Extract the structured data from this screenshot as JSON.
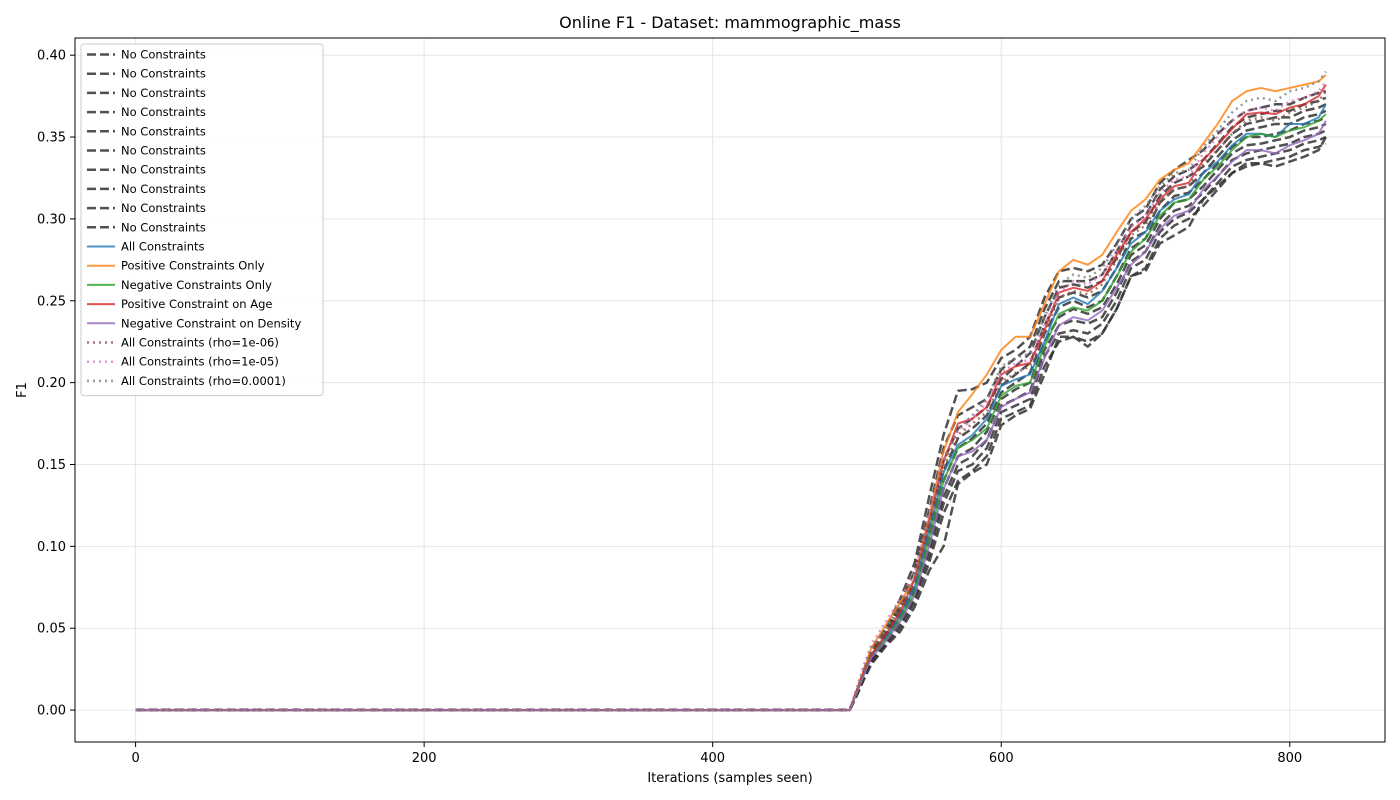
{
  "chart_data": {
    "type": "line",
    "title": "Online F1 - Dataset: mammographic_mass",
    "xlabel": "Iterations (samples seen)",
    "ylabel": "F1",
    "xlim": [
      -42,
      866
    ],
    "ylim": [
      -0.0195,
      0.4105
    ],
    "x_ticks": [
      0,
      200,
      400,
      600,
      800
    ],
    "y_ticks": [
      0.0,
      0.05,
      0.1,
      0.15,
      0.2,
      0.25,
      0.3,
      0.35,
      0.4
    ],
    "x_tick_labels": [
      "0",
      "200",
      "400",
      "600",
      "800"
    ],
    "y_tick_labels": [
      "0.00",
      "0.05",
      "0.10",
      "0.15",
      "0.20",
      "0.25",
      "0.30",
      "0.35",
      "0.40"
    ],
    "grid": true,
    "legend_position": "upper-left",
    "x": [
      0,
      495,
      500,
      505,
      510,
      520,
      530,
      540,
      550,
      560,
      570,
      580,
      590,
      600,
      610,
      620,
      630,
      640,
      650,
      660,
      670,
      680,
      690,
      700,
      710,
      720,
      730,
      740,
      750,
      760,
      770,
      780,
      790,
      800,
      810,
      820,
      825
    ],
    "series": [
      {
        "name": "No Constraints",
        "color": "#333333",
        "style": "dashed",
        "values": [
          0,
          0,
          0.012,
          0.025,
          0.037,
          0.05,
          0.068,
          0.09,
          0.13,
          0.168,
          0.195,
          0.196,
          0.2,
          0.215,
          0.22,
          0.228,
          0.252,
          0.268,
          0.27,
          0.268,
          0.272,
          0.285,
          0.3,
          0.306,
          0.322,
          0.33,
          0.336,
          0.342,
          0.352,
          0.36,
          0.366,
          0.368,
          0.37,
          0.37,
          0.374,
          0.377,
          0.378
        ]
      },
      {
        "name": "No Constraints",
        "color": "#333333",
        "style": "dashed",
        "values": [
          0,
          0,
          0.012,
          0.024,
          0.035,
          0.047,
          0.065,
          0.085,
          0.122,
          0.16,
          0.18,
          0.185,
          0.19,
          0.208,
          0.215,
          0.222,
          0.245,
          0.262,
          0.262,
          0.262,
          0.266,
          0.28,
          0.296,
          0.302,
          0.318,
          0.326,
          0.33,
          0.336,
          0.346,
          0.356,
          0.362,
          0.364,
          0.366,
          0.366,
          0.37,
          0.372,
          0.374
        ]
      },
      {
        "name": "No Constraints",
        "color": "#333333",
        "style": "dashed",
        "values": [
          0,
          0,
          0.011,
          0.023,
          0.034,
          0.046,
          0.062,
          0.08,
          0.115,
          0.152,
          0.172,
          0.178,
          0.185,
          0.202,
          0.21,
          0.218,
          0.24,
          0.258,
          0.26,
          0.258,
          0.262,
          0.276,
          0.292,
          0.298,
          0.314,
          0.322,
          0.326,
          0.332,
          0.342,
          0.352,
          0.358,
          0.36,
          0.362,
          0.362,
          0.366,
          0.368,
          0.37
        ]
      },
      {
        "name": "No Constraints",
        "color": "#333333",
        "style": "dashed",
        "values": [
          0,
          0,
          0.011,
          0.022,
          0.033,
          0.045,
          0.06,
          0.077,
          0.11,
          0.146,
          0.166,
          0.172,
          0.18,
          0.198,
          0.205,
          0.212,
          0.235,
          0.252,
          0.255,
          0.252,
          0.256,
          0.27,
          0.288,
          0.292,
          0.31,
          0.318,
          0.32,
          0.328,
          0.338,
          0.348,
          0.354,
          0.356,
          0.358,
          0.358,
          0.362,
          0.364,
          0.366
        ]
      },
      {
        "name": "No Constraints",
        "color": "#333333",
        "style": "dashed",
        "values": [
          0,
          0,
          0.011,
          0.022,
          0.032,
          0.044,
          0.058,
          0.074,
          0.106,
          0.14,
          0.16,
          0.166,
          0.175,
          0.194,
          0.2,
          0.206,
          0.23,
          0.246,
          0.25,
          0.246,
          0.25,
          0.265,
          0.282,
          0.288,
          0.305,
          0.314,
          0.316,
          0.324,
          0.334,
          0.344,
          0.35,
          0.35,
          0.352,
          0.354,
          0.358,
          0.36,
          0.362
        ]
      },
      {
        "name": "No Constraints",
        "color": "#333333",
        "style": "dashed",
        "values": [
          0,
          0,
          0.01,
          0.021,
          0.031,
          0.043,
          0.056,
          0.072,
          0.102,
          0.135,
          0.155,
          0.16,
          0.17,
          0.19,
          0.196,
          0.2,
          0.225,
          0.24,
          0.245,
          0.242,
          0.246,
          0.26,
          0.278,
          0.284,
          0.3,
          0.31,
          0.312,
          0.32,
          0.33,
          0.34,
          0.345,
          0.346,
          0.348,
          0.35,
          0.354,
          0.356,
          0.358
        ]
      },
      {
        "name": "No Constraints",
        "color": "#333333",
        "style": "dashed",
        "values": [
          0,
          0,
          0.01,
          0.02,
          0.03,
          0.042,
          0.054,
          0.07,
          0.098,
          0.13,
          0.15,
          0.155,
          0.165,
          0.186,
          0.19,
          0.195,
          0.22,
          0.235,
          0.238,
          0.236,
          0.24,
          0.255,
          0.274,
          0.28,
          0.296,
          0.305,
          0.308,
          0.316,
          0.326,
          0.336,
          0.34,
          0.342,
          0.344,
          0.346,
          0.35,
          0.352,
          0.354
        ]
      },
      {
        "name": "No Constraints",
        "color": "#333333",
        "style": "dashed",
        "values": [
          0,
          0,
          0.01,
          0.02,
          0.03,
          0.041,
          0.052,
          0.068,
          0.094,
          0.126,
          0.146,
          0.15,
          0.16,
          0.182,
          0.186,
          0.19,
          0.216,
          0.23,
          0.232,
          0.23,
          0.236,
          0.25,
          0.27,
          0.275,
          0.292,
          0.3,
          0.304,
          0.312,
          0.322,
          0.332,
          0.336,
          0.338,
          0.34,
          0.342,
          0.346,
          0.348,
          0.35
        ]
      },
      {
        "name": "No Constraints",
        "color": "#333333",
        "style": "dashed",
        "values": [
          0,
          0,
          0.01,
          0.02,
          0.029,
          0.04,
          0.05,
          0.066,
          0.09,
          0.12,
          0.14,
          0.146,
          0.155,
          0.178,
          0.182,
          0.186,
          0.21,
          0.225,
          0.228,
          0.225,
          0.23,
          0.245,
          0.265,
          0.27,
          0.288,
          0.296,
          0.3,
          0.308,
          0.318,
          0.328,
          0.332,
          0.334,
          0.336,
          0.338,
          0.342,
          0.344,
          0.346
        ]
      },
      {
        "name": "No Constraints",
        "color": "#333333",
        "style": "dashed",
        "values": [
          0,
          0,
          0.009,
          0.019,
          0.028,
          0.039,
          0.048,
          0.063,
          0.085,
          0.1,
          0.138,
          0.145,
          0.15,
          0.174,
          0.18,
          0.184,
          0.205,
          0.228,
          0.228,
          0.222,
          0.23,
          0.245,
          0.265,
          0.268,
          0.285,
          0.29,
          0.295,
          0.312,
          0.32,
          0.328,
          0.334,
          0.334,
          0.332,
          0.335,
          0.338,
          0.342,
          0.35
        ]
      },
      {
        "name": "All Constraints",
        "color": "#1f77b4",
        "style": "solid",
        "values": [
          0,
          0,
          0.011,
          0.022,
          0.034,
          0.044,
          0.058,
          0.075,
          0.11,
          0.145,
          0.162,
          0.168,
          0.178,
          0.198,
          0.202,
          0.205,
          0.225,
          0.248,
          0.252,
          0.248,
          0.256,
          0.27,
          0.285,
          0.292,
          0.305,
          0.312,
          0.315,
          0.328,
          0.335,
          0.345,
          0.352,
          0.352,
          0.35,
          0.358,
          0.358,
          0.362,
          0.37
        ]
      },
      {
        "name": "Positive Constraints Only",
        "color": "#ff7f0e",
        "style": "solid",
        "values": [
          0,
          0,
          0.012,
          0.025,
          0.038,
          0.052,
          0.066,
          0.08,
          0.118,
          0.158,
          0.182,
          0.193,
          0.205,
          0.22,
          0.228,
          0.228,
          0.248,
          0.268,
          0.275,
          0.272,
          0.278,
          0.292,
          0.305,
          0.312,
          0.324,
          0.33,
          0.334,
          0.346,
          0.358,
          0.372,
          0.378,
          0.38,
          0.378,
          0.38,
          0.382,
          0.384,
          0.388
        ]
      },
      {
        "name": "Negative Constraints Only",
        "color": "#2ca02c",
        "style": "solid",
        "values": [
          0,
          0,
          0.011,
          0.022,
          0.033,
          0.043,
          0.056,
          0.072,
          0.105,
          0.14,
          0.16,
          0.165,
          0.172,
          0.192,
          0.198,
          0.2,
          0.222,
          0.242,
          0.246,
          0.244,
          0.25,
          0.265,
          0.28,
          0.288,
          0.302,
          0.31,
          0.312,
          0.324,
          0.332,
          0.342,
          0.35,
          0.352,
          0.35,
          0.354,
          0.356,
          0.36,
          0.364
        ]
      },
      {
        "name": "Positive Constraint on Age",
        "color": "#d62728",
        "style": "solid",
        "values": [
          0,
          0,
          0.012,
          0.024,
          0.034,
          0.046,
          0.06,
          0.08,
          0.115,
          0.152,
          0.175,
          0.178,
          0.185,
          0.205,
          0.21,
          0.212,
          0.232,
          0.255,
          0.258,
          0.256,
          0.262,
          0.278,
          0.292,
          0.3,
          0.312,
          0.32,
          0.322,
          0.336,
          0.345,
          0.355,
          0.364,
          0.365,
          0.364,
          0.368,
          0.37,
          0.375,
          0.382
        ]
      },
      {
        "name": "Negative Constraint on Density",
        "color": "#9467bd",
        "style": "solid",
        "values": [
          0,
          0,
          0.011,
          0.022,
          0.032,
          0.042,
          0.054,
          0.07,
          0.1,
          0.135,
          0.155,
          0.158,
          0.165,
          0.185,
          0.19,
          0.194,
          0.215,
          0.235,
          0.24,
          0.238,
          0.244,
          0.258,
          0.272,
          0.28,
          0.294,
          0.302,
          0.305,
          0.318,
          0.326,
          0.335,
          0.342,
          0.342,
          0.34,
          0.345,
          0.348,
          0.352,
          0.36
        ]
      },
      {
        "name": "All Constraints (rho=1e-06)",
        "color": "#8c564b",
        "style": "dotted",
        "values": [
          0,
          0,
          0.012,
          0.024,
          0.036,
          0.048,
          0.062,
          0.078,
          0.112,
          0.148,
          0.168,
          0.175,
          0.182,
          0.2,
          0.206,
          0.21,
          0.23,
          0.252,
          0.256,
          0.254,
          0.26,
          0.275,
          0.29,
          0.296,
          0.31,
          0.318,
          0.32,
          0.334,
          0.342,
          0.352,
          0.36,
          0.362,
          0.36,
          0.365,
          0.368,
          0.372,
          0.378
        ]
      },
      {
        "name": "All Constraints (rho=1e-05)",
        "color": "#e377c2",
        "style": "dotted",
        "values": [
          0,
          0,
          0.014,
          0.028,
          0.04,
          0.054,
          0.068,
          0.084,
          0.12,
          0.155,
          0.17,
          0.178,
          0.188,
          0.206,
          0.212,
          0.214,
          0.235,
          0.255,
          0.262,
          0.26,
          0.266,
          0.28,
          0.295,
          0.302,
          0.316,
          0.324,
          0.326,
          0.34,
          0.35,
          0.36,
          0.366,
          0.368,
          0.366,
          0.372,
          0.374,
          0.378,
          0.384
        ]
      },
      {
        "name": "All Constraints (rho=0.0001)",
        "color": "#7f7f7f",
        "style": "dotted",
        "values": [
          0,
          0,
          0.013,
          0.026,
          0.038,
          0.05,
          0.064,
          0.08,
          0.116,
          0.152,
          0.172,
          0.18,
          0.19,
          0.21,
          0.215,
          0.218,
          0.24,
          0.26,
          0.266,
          0.264,
          0.27,
          0.284,
          0.3,
          0.308,
          0.32,
          0.328,
          0.33,
          0.344,
          0.354,
          0.365,
          0.372,
          0.374,
          0.372,
          0.378,
          0.38,
          0.384,
          0.39
        ]
      }
    ]
  }
}
